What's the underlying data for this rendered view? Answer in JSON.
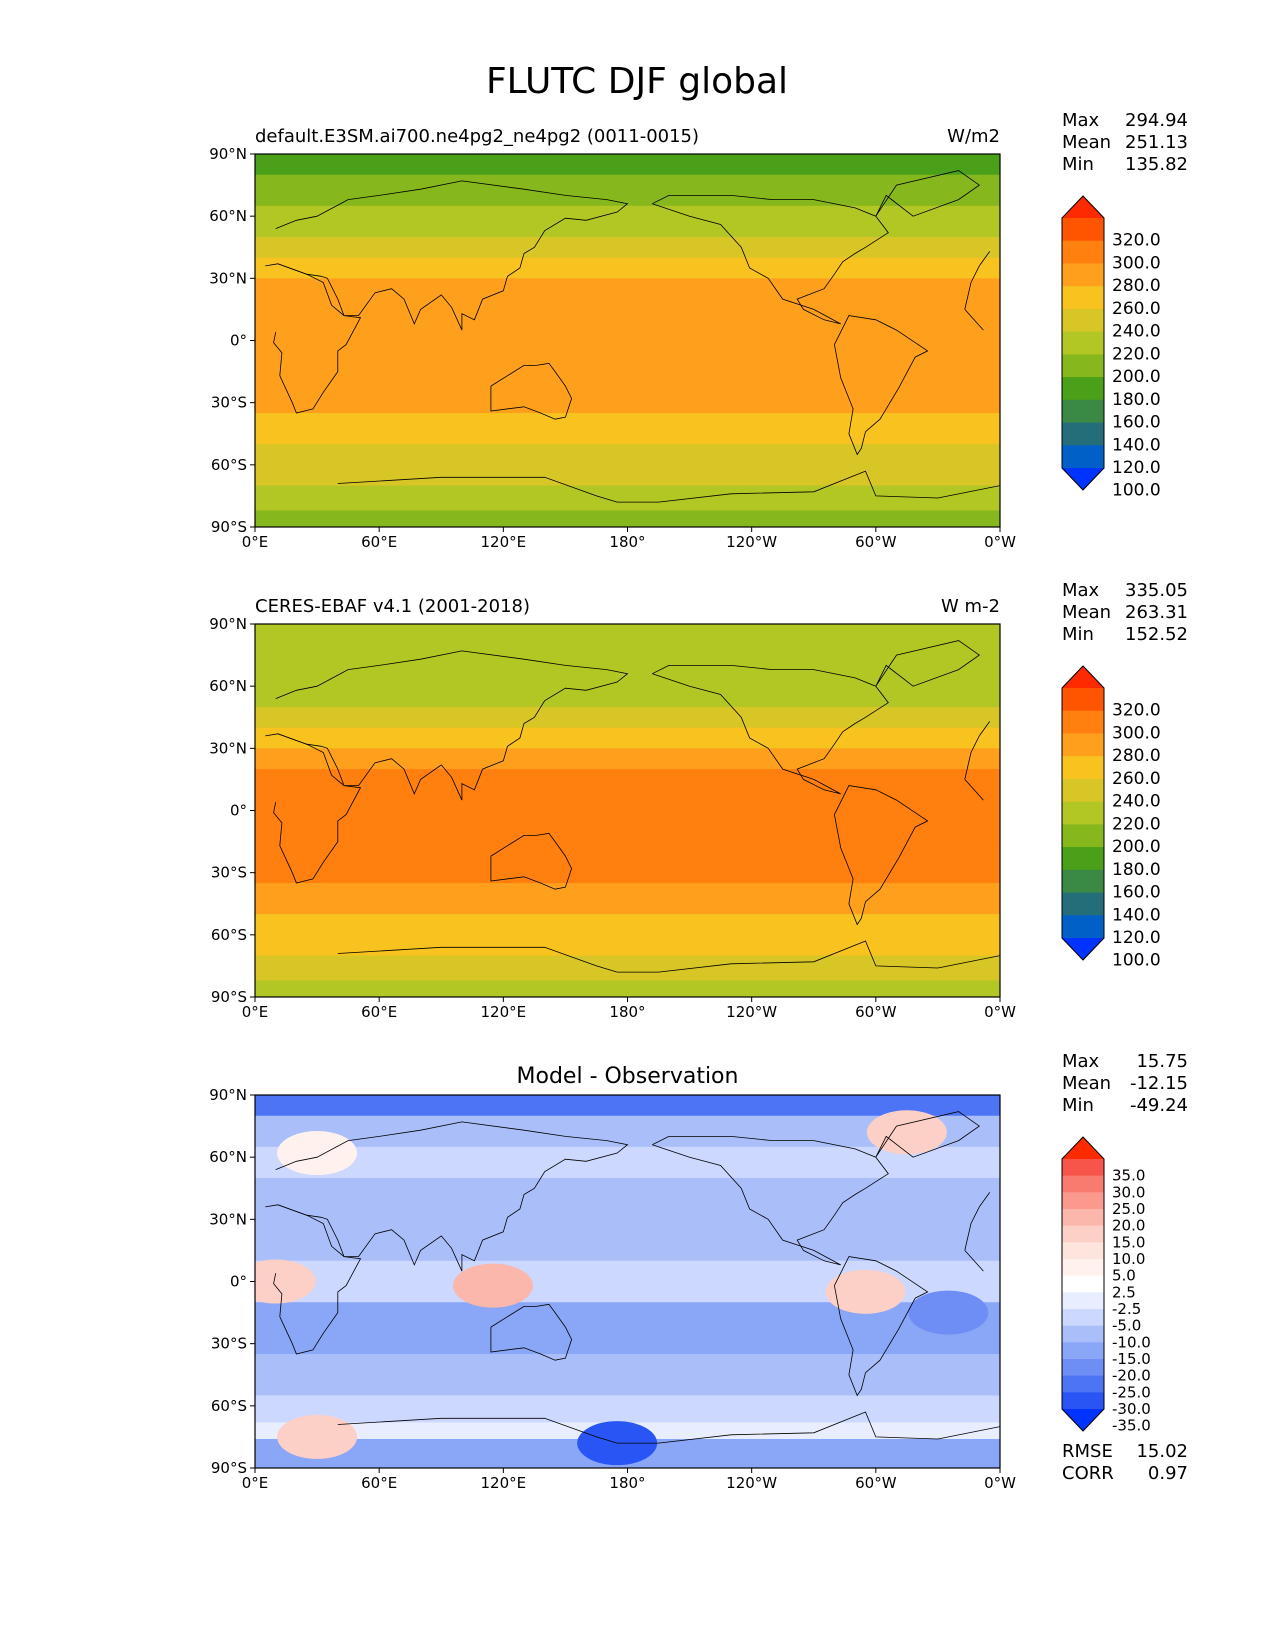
{
  "figure": {
    "title": "FLUTC DJF global"
  },
  "axis_ticks": {
    "lon_labels": [
      "0°E",
      "60°E",
      "120°E",
      "180°",
      "120°W",
      "60°W",
      "0°W"
    ],
    "lat_labels": [
      "90°N",
      "60°N",
      "30°N",
      "0°",
      "30°S",
      "60°S",
      "90°S"
    ]
  },
  "stat_names": {
    "max": "Max",
    "mean": "Mean",
    "min": "Min",
    "rmse": "RMSE",
    "corr": "CORR"
  },
  "chart_data": [
    {
      "type": "heatmap",
      "subtitle": "default.E3SM.ai700.ne4pg2_ne4pg2 (0011-0015)",
      "units": "W/m2",
      "stats": {
        "max": "294.94",
        "mean": "251.13",
        "min": "135.82"
      },
      "x_range": [
        0,
        360
      ],
      "y_range": [
        -90,
        90
      ],
      "colorbar": {
        "levels": [
          "320.0",
          "300.0",
          "280.0",
          "260.0",
          "240.0",
          "220.0",
          "200.0",
          "180.0",
          "160.0",
          "140.0",
          "120.0",
          "100.0"
        ],
        "colors": [
          "#ff2a00",
          "#ff5500",
          "#ff7f0f",
          "#ffa01c",
          "#f8c21f",
          "#d8c626",
          "#b2c624",
          "#86b71d",
          "#4aa018",
          "#3a8a45",
          "#236e78",
          "#0060c8",
          "#0033ff"
        ]
      },
      "bands": [
        {
          "lat": [
            90,
            80
          ],
          "value": 175
        },
        {
          "lat": [
            80,
            65
          ],
          "value": 185
        },
        {
          "lat": [
            65,
            50
          ],
          "value": 205
        },
        {
          "lat": [
            50,
            40
          ],
          "value": 225
        },
        {
          "lat": [
            40,
            30
          ],
          "value": 250
        },
        {
          "lat": [
            30,
            -15
          ],
          "value": 270
        },
        {
          "lat": [
            -15,
            -35
          ],
          "value": 262
        },
        {
          "lat": [
            -35,
            -50
          ],
          "value": 245
        },
        {
          "lat": [
            -50,
            -70
          ],
          "value": 225
        },
        {
          "lat": [
            -70,
            -82
          ],
          "value": 200
        },
        {
          "lat": [
            -82,
            -90
          ],
          "value": 185
        }
      ]
    },
    {
      "type": "heatmap",
      "subtitle": "CERES-EBAF v4.1 (2001-2018)",
      "units": "W m-2",
      "stats": {
        "max": "335.05",
        "mean": "263.31",
        "min": "152.52"
      },
      "x_range": [
        0,
        360
      ],
      "y_range": [
        -90,
        90
      ],
      "colorbar": {
        "levels": [
          "320.0",
          "300.0",
          "280.0",
          "260.0",
          "240.0",
          "220.0",
          "200.0",
          "180.0",
          "160.0",
          "140.0",
          "120.0",
          "100.0"
        ],
        "colors": [
          "#ff2a00",
          "#ff5500",
          "#ff7f0f",
          "#ffa01c",
          "#f8c21f",
          "#d8c626",
          "#b2c624",
          "#86b71d",
          "#4aa018",
          "#3a8a45",
          "#236e78",
          "#0060c8",
          "#0033ff"
        ]
      },
      "bands": [
        {
          "lat": [
            90,
            80
          ],
          "value": 205
        },
        {
          "lat": [
            80,
            65
          ],
          "value": 200
        },
        {
          "lat": [
            65,
            50
          ],
          "value": 215
        },
        {
          "lat": [
            50,
            40
          ],
          "value": 235
        },
        {
          "lat": [
            40,
            30
          ],
          "value": 258
        },
        {
          "lat": [
            30,
            20
          ],
          "value": 275
        },
        {
          "lat": [
            20,
            -15
          ],
          "value": 285
        },
        {
          "lat": [
            -15,
            -35
          ],
          "value": 282
        },
        {
          "lat": [
            -35,
            -50
          ],
          "value": 262
        },
        {
          "lat": [
            -50,
            -70
          ],
          "value": 242
        },
        {
          "lat": [
            -70,
            -82
          ],
          "value": 225
        },
        {
          "lat": [
            -82,
            -90
          ],
          "value": 205
        }
      ]
    },
    {
      "type": "heatmap",
      "subtitle": "Model - Observation",
      "units": "",
      "stats": {
        "max": "15.75",
        "mean": "-12.15",
        "min": "-49.24"
      },
      "metrics": {
        "rmse": "15.02",
        "corr": "0.97"
      },
      "x_range": [
        0,
        360
      ],
      "y_range": [
        -90,
        90
      ],
      "colorbar": {
        "levels": [
          "35.0",
          "30.0",
          "25.0",
          "20.0",
          "15.0",
          "10.0",
          "5.0",
          "2.5",
          "-2.5",
          "-5.0",
          "-10.0",
          "-15.0",
          "-20.0",
          "-25.0",
          "-30.0",
          "-35.0"
        ],
        "colors": [
          "#ff2a00",
          "#f8554a",
          "#f97a6e",
          "#fa9a8e",
          "#fbb7ab",
          "#fcd0c6",
          "#fde4dc",
          "#fff2ee",
          "#ffffff",
          "#e8eeff",
          "#ccd8ff",
          "#aabffa",
          "#8aa6f6",
          "#6e8ef5",
          "#4d74f5",
          "#2a55f5",
          "#0033ff"
        ]
      },
      "bands": [
        {
          "lat": [
            90,
            80
          ],
          "value": -28
        },
        {
          "lat": [
            80,
            65
          ],
          "value": -14
        },
        {
          "lat": [
            65,
            50
          ],
          "value": -8
        },
        {
          "lat": [
            50,
            30
          ],
          "value": -12
        },
        {
          "lat": [
            30,
            10
          ],
          "value": -14
        },
        {
          "lat": [
            10,
            -10
          ],
          "value": -7
        },
        {
          "lat": [
            -10,
            -35
          ],
          "value": -18
        },
        {
          "lat": [
            -35,
            -55
          ],
          "value": -12
        },
        {
          "lat": [
            -55,
            -68
          ],
          "value": -10
        },
        {
          "lat": [
            -68,
            -76
          ],
          "value": -4
        },
        {
          "lat": [
            -76,
            -90
          ],
          "value": -16
        }
      ],
      "anomalies": [
        {
          "lon": 10,
          "lat": 0,
          "value": 10
        },
        {
          "lon": 115,
          "lat": -2,
          "value": 15
        },
        {
          "lon": 295,
          "lat": -5,
          "value": 10
        },
        {
          "lon": 315,
          "lat": 72,
          "value": 10
        },
        {
          "lon": 30,
          "lat": 62,
          "value": 3
        },
        {
          "lon": 30,
          "lat": -75,
          "value": 10
        },
        {
          "lon": 175,
          "lat": -78,
          "value": -35
        },
        {
          "lon": 335,
          "lat": -15,
          "value": -25
        }
      ]
    }
  ]
}
